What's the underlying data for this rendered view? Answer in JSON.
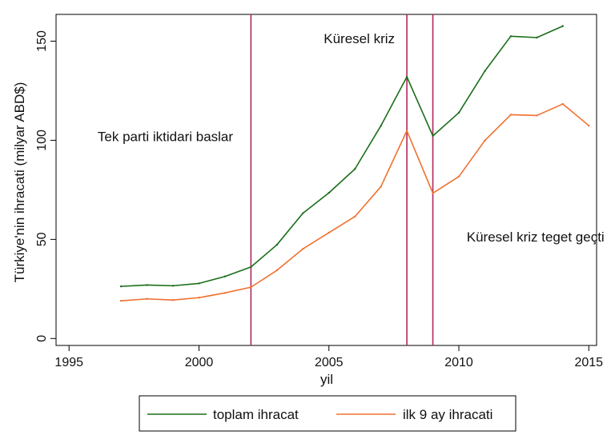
{
  "chart_data": {
    "type": "line",
    "xlabel": "yil",
    "ylabel": "Türkiye'nin ihracati (milyar ABD$)",
    "xlim": [
      1994.5,
      2015.3
    ],
    "ylim": [
      -3.5,
      163.5
    ],
    "xticks": [
      1995,
      2000,
      2005,
      2010,
      2015
    ],
    "yticks": [
      0,
      50,
      100,
      150
    ],
    "grid": false,
    "legend_position": "bottom",
    "series": [
      {
        "name": "toplam ihracat",
        "color": "#1a6e1a",
        "x": [
          1997,
          1998,
          1999,
          2000,
          2001,
          2002,
          2003,
          2004,
          2005,
          2006,
          2007,
          2008,
          2009,
          2010,
          2011,
          2012,
          2013,
          2014
        ],
        "y": [
          26.3,
          27.0,
          26.6,
          27.8,
          31.3,
          36.1,
          47.3,
          63.2,
          73.5,
          85.5,
          107.3,
          132.0,
          102.2,
          113.9,
          134.9,
          152.5,
          151.8,
          157.6
        ]
      },
      {
        "name": "ilk 9 ay ihracati",
        "color": "#f07030",
        "x": [
          1997,
          1998,
          1999,
          2000,
          2001,
          2002,
          2003,
          2004,
          2005,
          2006,
          2007,
          2008,
          2009,
          2010,
          2011,
          2012,
          2013,
          2014,
          2015
        ],
        "y": [
          19.0,
          20.0,
          19.4,
          20.6,
          23.0,
          25.9,
          34.4,
          45.2,
          53.4,
          61.5,
          76.6,
          104.8,
          73.3,
          81.7,
          99.9,
          112.9,
          112.5,
          118.3,
          107.4
        ]
      }
    ],
    "vlines": [
      {
        "x": 2002,
        "color": "#b2275e"
      },
      {
        "x": 2008,
        "color": "#b2275e"
      },
      {
        "x": 2009,
        "color": "#b2275e"
      }
    ],
    "annotations": [
      {
        "text": "Tek parti iktidari baslar",
        "x": 1996.1,
        "y": 99.5
      },
      {
        "text": "Küresel kriz",
        "x": 2004.8,
        "y": 149
      },
      {
        "text": "Küresel kriz teget geçti",
        "x": 2010.3,
        "y": 49
      }
    ]
  }
}
